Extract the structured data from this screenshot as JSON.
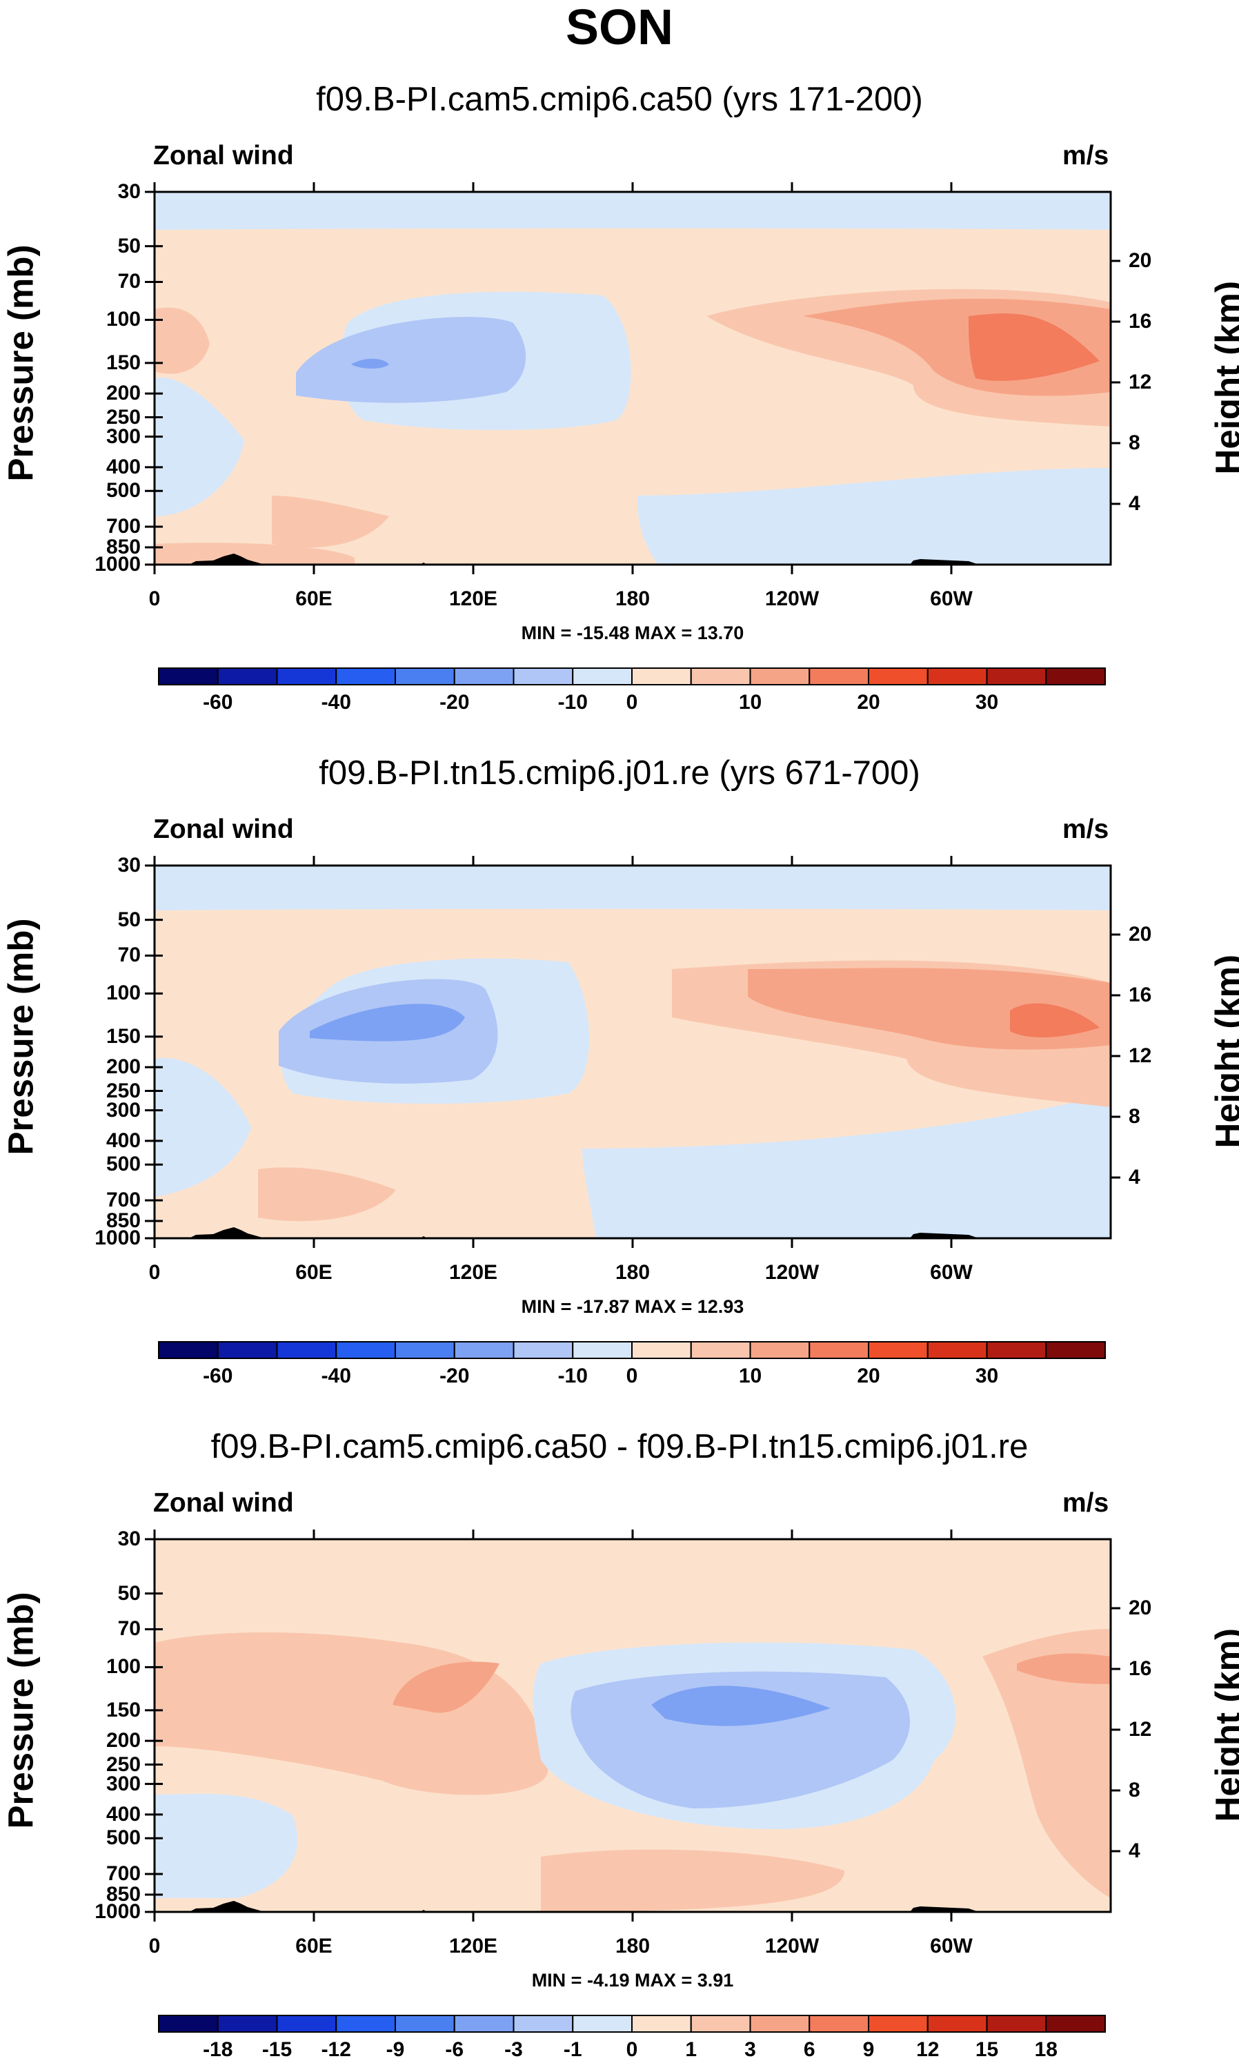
{
  "main_title": "SON",
  "chart_data": [
    {
      "type": "heatmap",
      "title": "f09.B-PI.cam5.cmip6.ca50 (yrs 171-200)",
      "variable": "Zonal wind",
      "units": "m/s",
      "ylabel": "Pressure (mb)",
      "ylabel_right": "Height (km)",
      "x_ticks": [
        "0",
        "60E",
        "120E",
        "180",
        "120W",
        "60W"
      ],
      "x_tick_values": [
        0,
        60,
        120,
        180,
        240,
        300
      ],
      "xlim": [
        0,
        360
      ],
      "pressure_ticks": [
        "30",
        "50",
        "70",
        "100",
        "150",
        "200",
        "250",
        "300",
        "400",
        "500",
        "700",
        "850",
        "1000"
      ],
      "pressure_tick_values": [
        30,
        50,
        70,
        100,
        150,
        200,
        250,
        300,
        400,
        500,
        700,
        850,
        1000
      ],
      "ylim_mb": [
        1000,
        30
      ],
      "height_ticks": [
        "4",
        "8",
        "12",
        "16",
        "20"
      ],
      "height_tick_values": [
        4,
        8,
        12,
        16,
        20
      ],
      "min_max": "MIN = -15.48  MAX =  13.70",
      "min": -15.48,
      "max": 13.7,
      "colorbar_labels": [
        "-60",
        "-40",
        "-20",
        "-10",
        "0",
        "10",
        "20",
        "30"
      ],
      "contour_features": [
        {
          "name": "easterly-band-top",
          "lon": [
            0,
            360
          ],
          "p": [
            30,
            45
          ],
          "level": "-5 to 0"
        },
        {
          "name": "easterly-jet-core",
          "lon": [
            45,
            175
          ],
          "p": [
            70,
            300
          ],
          "level": "-15 to -10"
        },
        {
          "name": "westerly-jet",
          "lon": [
            210,
            360
          ],
          "p": [
            70,
            400
          ],
          "level": "10 to 15"
        },
        {
          "name": "low-level-westerly",
          "lon": [
            45,
            120
          ],
          "p": [
            500,
            800
          ],
          "level": "0 to 5"
        }
      ]
    },
    {
      "type": "heatmap",
      "title": "f09.B-PI.tn15.cmip6.j01.re (yrs 671-700)",
      "variable": "Zonal wind",
      "units": "m/s",
      "ylabel": "Pressure (mb)",
      "ylabel_right": "Height (km)",
      "x_ticks": [
        "0",
        "60E",
        "120E",
        "180",
        "120W",
        "60W"
      ],
      "x_tick_values": [
        0,
        60,
        120,
        180,
        240,
        300
      ],
      "xlim": [
        0,
        360
      ],
      "pressure_ticks": [
        "30",
        "50",
        "70",
        "100",
        "150",
        "200",
        "250",
        "300",
        "400",
        "500",
        "700",
        "850",
        "1000"
      ],
      "pressure_tick_values": [
        30,
        50,
        70,
        100,
        150,
        200,
        250,
        300,
        400,
        500,
        700,
        850,
        1000
      ],
      "ylim_mb": [
        1000,
        30
      ],
      "height_ticks": [
        "4",
        "8",
        "12",
        "16",
        "20"
      ],
      "height_tick_values": [
        4,
        8,
        12,
        16,
        20
      ],
      "min_max": "MIN = -17.87  MAX =  12.93",
      "min": -17.87,
      "max": 12.93,
      "colorbar_labels": [
        "-60",
        "-40",
        "-20",
        "-10",
        "0",
        "10",
        "20",
        "30"
      ],
      "contour_features": [
        {
          "name": "easterly-band-top",
          "lon": [
            0,
            360
          ],
          "p": [
            30,
            45
          ],
          "level": "-5 to 0"
        },
        {
          "name": "easterly-jet-core",
          "lon": [
            40,
            160
          ],
          "p": [
            70,
            300
          ],
          "level": "-15 to -10"
        },
        {
          "name": "westerly-jet",
          "lon": [
            195,
            360
          ],
          "p": [
            70,
            350
          ],
          "level": "10 to 15"
        },
        {
          "name": "low-level-westerly",
          "lon": [
            45,
            140
          ],
          "p": [
            500,
            850
          ],
          "level": "0 to 5"
        }
      ]
    },
    {
      "type": "heatmap",
      "title": "f09.B-PI.cam5.cmip6.ca50 - f09.B-PI.tn15.cmip6.j01.re",
      "variable": "Zonal wind",
      "units": "m/s",
      "ylabel": "Pressure (mb)",
      "ylabel_right": "Height (km)",
      "x_ticks": [
        "0",
        "60E",
        "120E",
        "180",
        "120W",
        "60W"
      ],
      "x_tick_values": [
        0,
        60,
        120,
        180,
        240,
        300
      ],
      "xlim": [
        0,
        360
      ],
      "pressure_ticks": [
        "30",
        "50",
        "70",
        "100",
        "150",
        "200",
        "250",
        "300",
        "400",
        "500",
        "700",
        "850",
        "1000"
      ],
      "pressure_tick_values": [
        30,
        50,
        70,
        100,
        150,
        200,
        250,
        300,
        400,
        500,
        700,
        850,
        1000
      ],
      "ylim_mb": [
        1000,
        30
      ],
      "height_ticks": [
        "4",
        "8",
        "12",
        "16",
        "20"
      ],
      "height_tick_values": [
        4,
        8,
        12,
        16,
        20
      ],
      "min_max": "MIN =  -4.19  MAX =   3.91",
      "min": -4.19,
      "max": 3.91,
      "colorbar_labels": [
        "-18",
        "-15",
        "-12",
        "-9",
        "-6",
        "-3",
        "-1",
        "0",
        "1",
        "3",
        "6",
        "9",
        "12",
        "15",
        "18"
      ],
      "contour_features": [
        {
          "name": "negative-core",
          "lon": [
            150,
            285
          ],
          "p": [
            80,
            400
          ],
          "level": "-3 to -1"
        },
        {
          "name": "positive-core-east",
          "lon": [
            90,
            130
          ],
          "p": [
            110,
            170
          ],
          "level": "3 to 6"
        },
        {
          "name": "positive-core-west",
          "lon": [
            325,
            360
          ],
          "p": [
            90,
            120
          ],
          "level": "1 to 3"
        }
      ]
    }
  ],
  "colorbar_colors": {
    "blue_0": "#030569",
    "blue_1": "#0c1aa6",
    "blue_2": "#1637d8",
    "blue_3": "#255ef0",
    "blue_4": "#4a7ff2",
    "blue_5": "#7da2f4",
    "blue_6": "#b0c6f6",
    "blue_7": "#d6e7fa",
    "red_0": "#fce2cd",
    "red_1": "#f9c6ad",
    "red_2": "#f6a487",
    "red_3": "#f27c5c",
    "red_4": "#ef4f2a",
    "red_5": "#d8331a",
    "red_6": "#b11d12",
    "red_7": "#7e0a0a"
  }
}
